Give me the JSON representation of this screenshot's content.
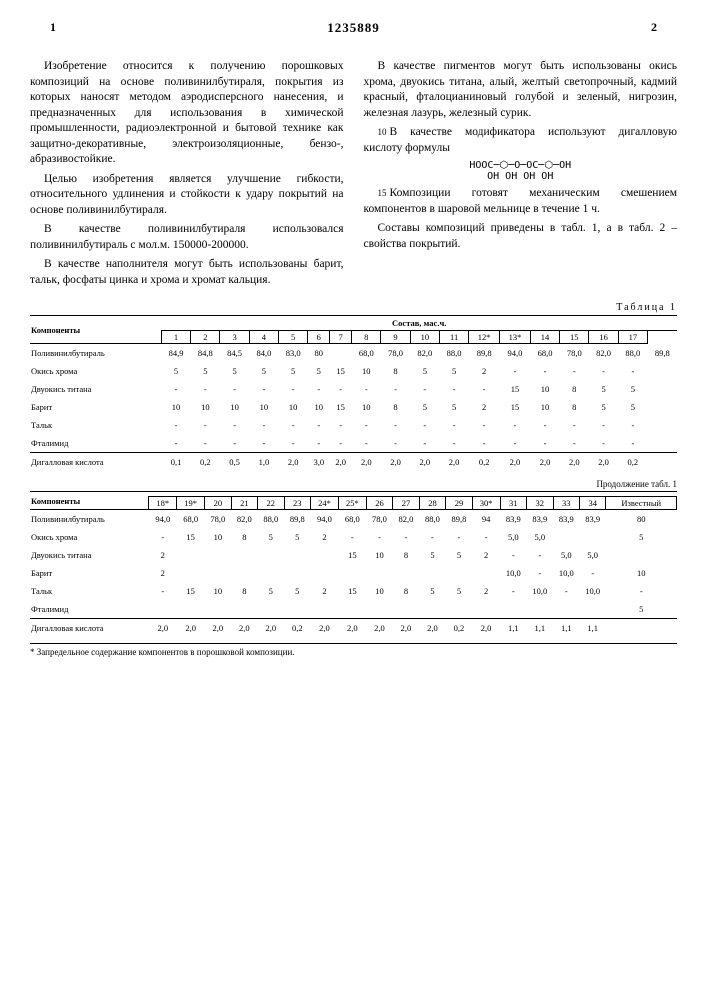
{
  "patent_number": "1235889",
  "col_left_num": "1",
  "col_right_num": "2",
  "left_col": {
    "p1": "Изобретение относится к получению порошковых композиций на основе поливинилбутираля, покрытия из которых наносят методом аэродисперсного нанесения, и предназначенных для использования в химической промышленности, радиоэлектронной и бытовой технике как защитно-декоративные, электроизоляционные, бензо-, абразивостойкие.",
    "p2": "Целью изобретения является улучшение гибкости, относительного удлинения и стойкости к удару покрытий на основе поливинилбутираля.",
    "p3": "В качестве поливинилбутираля использовался поливинилбутираль с мол.м. 150000-200000.",
    "p4": "В качестве наполнителя могут быть использованы барит, тальк, фосфаты цинка и хрома и хромат кальция."
  },
  "right_col": {
    "p1": "В качестве пигментов могут быть использованы окись хрома, двуокись титана, алый, желтый светопрочный, кадмий красный, фталоцианиновый голубой и зеленый, нигрозин, железная лазурь, железный сурик.",
    "p2": "В качестве модификатора используют дигалловую кислоту формулы",
    "formula_l1": "HOOC─⬡─O─OC─⬡─OH",
    "formula_l2": "     OH OH      OH OH",
    "p3": "Композиции готовят механическим смешением компонентов в шаровой мельнице в течение 1 ч.",
    "p4": "Составы композиций приведены в табл. 1, а в табл. 2 – свойства покрытий."
  },
  "line_5": "5",
  "line_10": "10",
  "line_15": "15",
  "table1": {
    "title": "Таблица 1",
    "header_comp": "Компоненты",
    "header_sost": "Состав, мас.ч.",
    "cols": [
      "1",
      "2",
      "3",
      "4",
      "5",
      "6",
      "7",
      "8",
      "9",
      "10",
      "11",
      "12*",
      "13*",
      "14",
      "15",
      "16",
      "17"
    ],
    "rows": [
      {
        "n": "Поливинилбутираль",
        "v": [
          "84,9",
          "84,8",
          "84,5",
          "84,0",
          "83,0",
          "80",
          "",
          "68,0",
          "78,0",
          "82,0",
          "88,0",
          "89,8",
          "94,0",
          "68,0",
          "78,0",
          "82,0",
          "88,0",
          "89,8"
        ]
      },
      {
        "n": "Окись хрома",
        "v": [
          "5",
          "5",
          "5",
          "5",
          "5",
          "5",
          "15",
          "10",
          "8",
          "5",
          "5",
          "2",
          "-",
          "-",
          "-",
          "-",
          "-"
        ]
      },
      {
        "n": "Двуокись титана",
        "v": [
          "-",
          "-",
          "-",
          "-",
          "-",
          "-",
          "-",
          "-",
          "-",
          "-",
          "-",
          "-",
          "15",
          "10",
          "8",
          "5",
          "5"
        ]
      },
      {
        "n": "Барит",
        "v": [
          "10",
          "10",
          "10",
          "10",
          "10",
          "10",
          "15",
          "10",
          "8",
          "5",
          "5",
          "2",
          "15",
          "10",
          "8",
          "5",
          "5"
        ]
      },
      {
        "n": "Тальк",
        "v": [
          "-",
          "-",
          "-",
          "-",
          "-",
          "-",
          "-",
          "-",
          "-",
          "-",
          "-",
          "-",
          "-",
          "-",
          "-",
          "-",
          "-"
        ]
      },
      {
        "n": "Фталимид",
        "v": [
          "-",
          "-",
          "-",
          "-",
          "-",
          "-",
          "-",
          "-",
          "-",
          "-",
          "-",
          "-",
          "-",
          "-",
          "-",
          "-",
          "-"
        ]
      },
      {
        "n": "Дигалловая кислота",
        "v": [
          "0,1",
          "0,2",
          "0,5",
          "1,0",
          "2,0",
          "3,0",
          "2,0",
          "2,0",
          "2,0",
          "2,0",
          "2,0",
          "0,2",
          "2,0",
          "2,0",
          "2,0",
          "2,0",
          "0,2"
        ]
      }
    ]
  },
  "table1b": {
    "title": "Продолжение табл. 1",
    "header_comp": "Компоненты",
    "cols": [
      "18*",
      "19*",
      "20",
      "21",
      "22",
      "23",
      "24*",
      "25*",
      "26",
      "27",
      "28",
      "29",
      "30*",
      "31",
      "32",
      "33",
      "34",
      "Известный"
    ],
    "rows": [
      {
        "n": "Поливинилбутираль",
        "v": [
          "94,0",
          "68,0",
          "78,0",
          "82,0",
          "88,0",
          "89,8",
          "94,0",
          "68,0",
          "78,0",
          "82,0",
          "88,0",
          "89,8",
          "94",
          "83,9",
          "83,9",
          "83,9",
          "83,9",
          "80"
        ]
      },
      {
        "n": "Окись хрома",
        "v": [
          "-",
          "15",
          "10",
          "8",
          "5",
          "5",
          "2",
          "-",
          "-",
          "-",
          "-",
          "-",
          "-",
          "5,0",
          "5,0",
          "",
          "",
          "5"
        ]
      },
      {
        "n": "Двуокись титана",
        "v": [
          "2",
          "",
          "",
          "",
          "",
          "",
          "",
          "15",
          "10",
          "8",
          "5",
          "5",
          "2",
          "-",
          "-",
          "5,0",
          "5,0",
          ""
        ]
      },
      {
        "n": "Барит",
        "v": [
          "2",
          "",
          "",
          "",
          "",
          "",
          "",
          "",
          "",
          "",
          "",
          "",
          "",
          "10,0",
          "-",
          "10,0",
          "-",
          "10"
        ]
      },
      {
        "n": "Тальк",
        "v": [
          "-",
          "15",
          "10",
          "8",
          "5",
          "5",
          "2",
          "15",
          "10",
          "8",
          "5",
          "5",
          "2",
          "-",
          "10,0",
          "-",
          "10,0",
          "-"
        ]
      },
      {
        "n": "Фталимид",
        "v": [
          "",
          "",
          "",
          "",
          "",
          "",
          "",
          "",
          "",
          "",
          "",
          "",
          "",
          "",
          "",
          "",
          "",
          "5"
        ]
      },
      {
        "n": "Дигалловая кислота",
        "v": [
          "2,0",
          "2,0",
          "2,0",
          "2,0",
          "2,0",
          "0,2",
          "2,0",
          "2,0",
          "2,0",
          "2,0",
          "2,0",
          "0,2",
          "2,0",
          "1,1",
          "1,1",
          "1,1",
          "1,1",
          ""
        ]
      }
    ]
  },
  "footnote": "* Запредельное содержание компонентов в порошковой композиции."
}
